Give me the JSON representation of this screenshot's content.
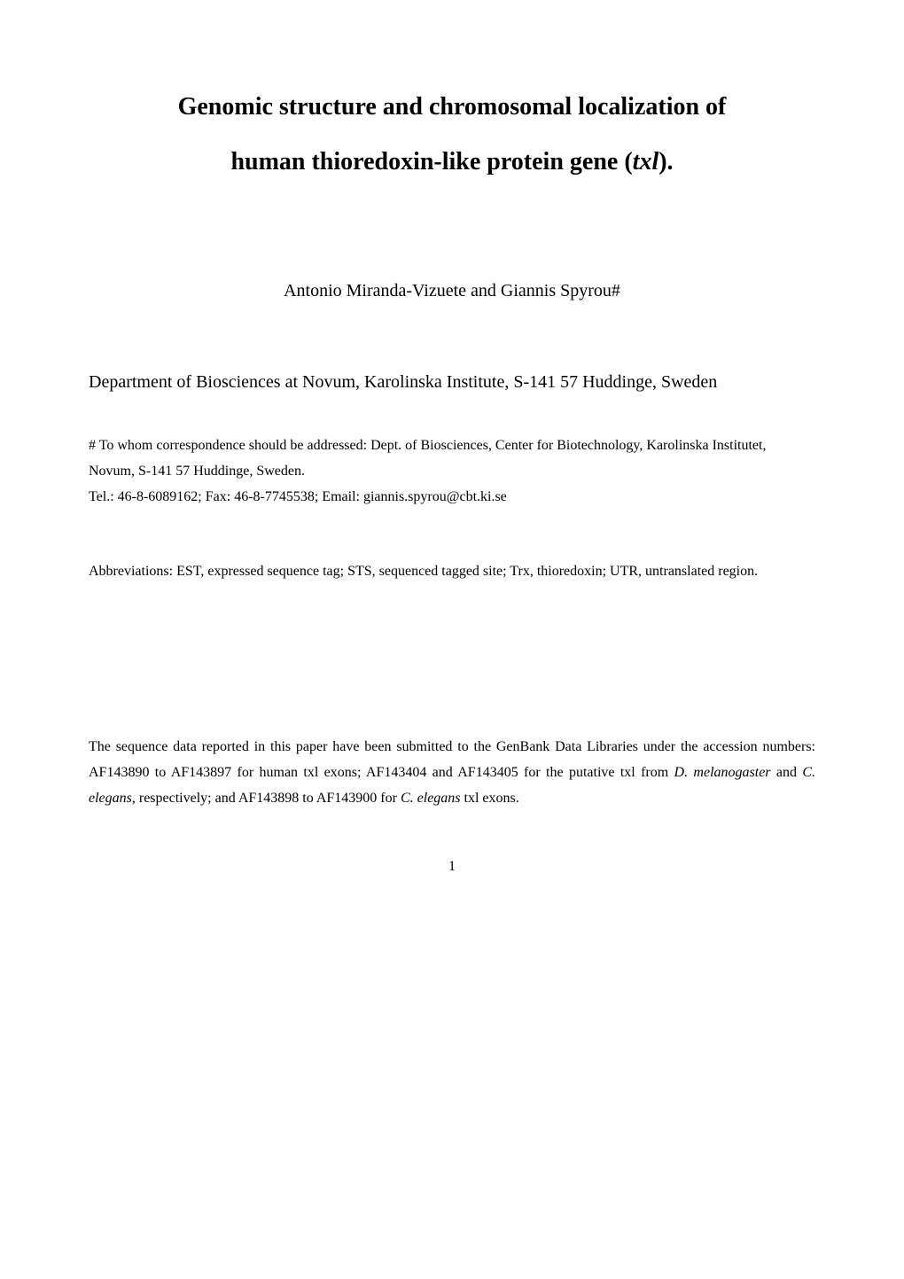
{
  "title": {
    "line1": "Genomic structure and chromosomal localization of",
    "line2_prefix": "human thioredoxin-like protein gene (",
    "line2_italic": "txl",
    "line2_suffix": ")."
  },
  "authors": "Antonio Miranda-Vizuete and Giannis Spyrou#",
  "affiliation": "Department of Biosciences at Novum, Karolinska Institute, S-141 57 Huddinge, Sweden",
  "correspondence": {
    "line1": "# To whom correspondence should be addressed: Dept. of Biosciences, Center for Biotechnology, Karolinska Institutet, Novum, S-141 57 Huddinge, Sweden.",
    "line2": "Tel.: 46-8-6089162; Fax: 46-8-7745538; Email: giannis.spyrou@cbt.ki.se"
  },
  "abbreviations": "Abbreviations: EST, expressed sequence tag; STS, sequenced tagged site; Trx, thioredoxin; UTR, untranslated region.",
  "deposition": {
    "part1": "The sequence data reported in this paper have been submitted to the GenBank Data Libraries under the accession numbers: AF143890 to AF143897 for human txl exons; AF143404 and AF143405 for the putative txl from ",
    "italic1": "D. melanogaster",
    "part2": " and ",
    "italic2": "C. elegans",
    "part3": ", respectively; and AF143898 to AF143900 for ",
    "italic3": "C. elegans",
    "part4": " txl exons."
  },
  "page_number": "1",
  "colors": {
    "background": "#ffffff",
    "text": "#000000"
  },
  "typography": {
    "font_family": "Times New Roman",
    "title_fontsize": 28,
    "authors_fontsize": 20,
    "affiliation_fontsize": 20,
    "body_fontsize": 16
  }
}
